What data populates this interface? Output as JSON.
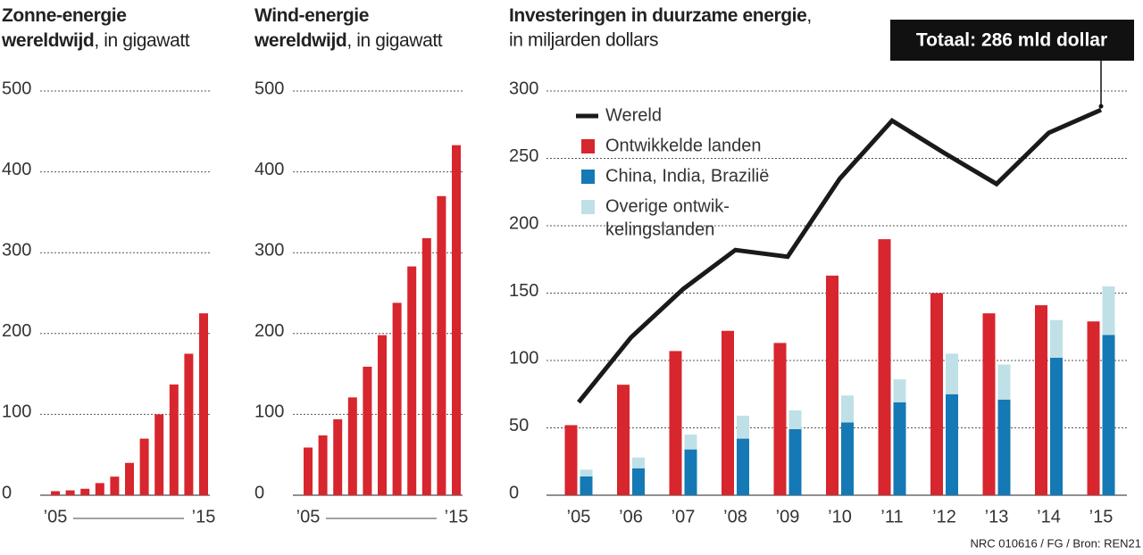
{
  "source": "NRC 010616 / FG / Bron: REN21",
  "chart_data": [
    {
      "type": "bar",
      "title": [
        "Zonne-energie",
        "wereldwijd"
      ],
      "subtitle": [
        ", in gigawatt"
      ],
      "categories": [
        "’05",
        null,
        null,
        null,
        null,
        null,
        null,
        null,
        null,
        null,
        "’15"
      ],
      "values": [
        5,
        6,
        8,
        15,
        23,
        40,
        70,
        100,
        137,
        175,
        225
      ],
      "color": "#d7262e",
      "ylim": [
        0,
        500
      ],
      "yticks": [
        0,
        100,
        200,
        300,
        400,
        500
      ],
      "grid": true
    },
    {
      "type": "bar",
      "title": [
        "Wind-energie",
        "wereldwijd"
      ],
      "subtitle": [
        ",  in gigawatt"
      ],
      "categories": [
        "’05",
        null,
        null,
        null,
        null,
        null,
        null,
        null,
        null,
        null,
        "’15"
      ],
      "values": [
        59,
        74,
        94,
        121,
        159,
        198,
        238,
        283,
        318,
        370,
        433
      ],
      "color": "#d7262e",
      "ylim": [
        0,
        500
      ],
      "yticks": [
        0,
        100,
        200,
        300,
        400,
        500
      ],
      "grid": true
    },
    {
      "type": "combo",
      "title": [
        "Investeringen in duurzame energie"
      ],
      "subtitle": [
        ",",
        "in miljarden dollars"
      ],
      "categories": [
        "’05",
        "’06",
        "’07",
        "’08",
        "’09",
        "’10",
        "’11",
        "’12",
        "’13",
        "’14",
        "’15"
      ],
      "series": [
        {
          "name": "Wereld",
          "type": "line",
          "color": "#1a1a1a",
          "values": [
            69,
            117,
            153,
            182,
            177,
            235,
            278,
            254,
            231,
            269,
            286
          ]
        },
        {
          "name": "Ontwikkelde landen",
          "type": "bar",
          "color": "#d7262e",
          "values": [
            52,
            82,
            107,
            122,
            113,
            163,
            190,
            150,
            135,
            141,
            129
          ]
        },
        {
          "name": "China, India, Brazilië",
          "type": "bar",
          "stack": "dev",
          "color": "#1479b4",
          "values": [
            14,
            20,
            34,
            42,
            49,
            54,
            69,
            75,
            71,
            102,
            119
          ]
        },
        {
          "name": [
            "Overige ontwik-",
            "kelingslanden"
          ],
          "type": "bar",
          "stack": "dev",
          "color": "#bfe0e6",
          "values": [
            5,
            8,
            11,
            17,
            14,
            20,
            17,
            30,
            26,
            28,
            36
          ]
        }
      ],
      "ylim": [
        0,
        300
      ],
      "yticks": [
        0,
        50,
        100,
        150,
        200,
        250,
        300
      ],
      "grid": true,
      "legend": "top-left",
      "annotation": "Totaal: 286 mld dollar"
    }
  ]
}
